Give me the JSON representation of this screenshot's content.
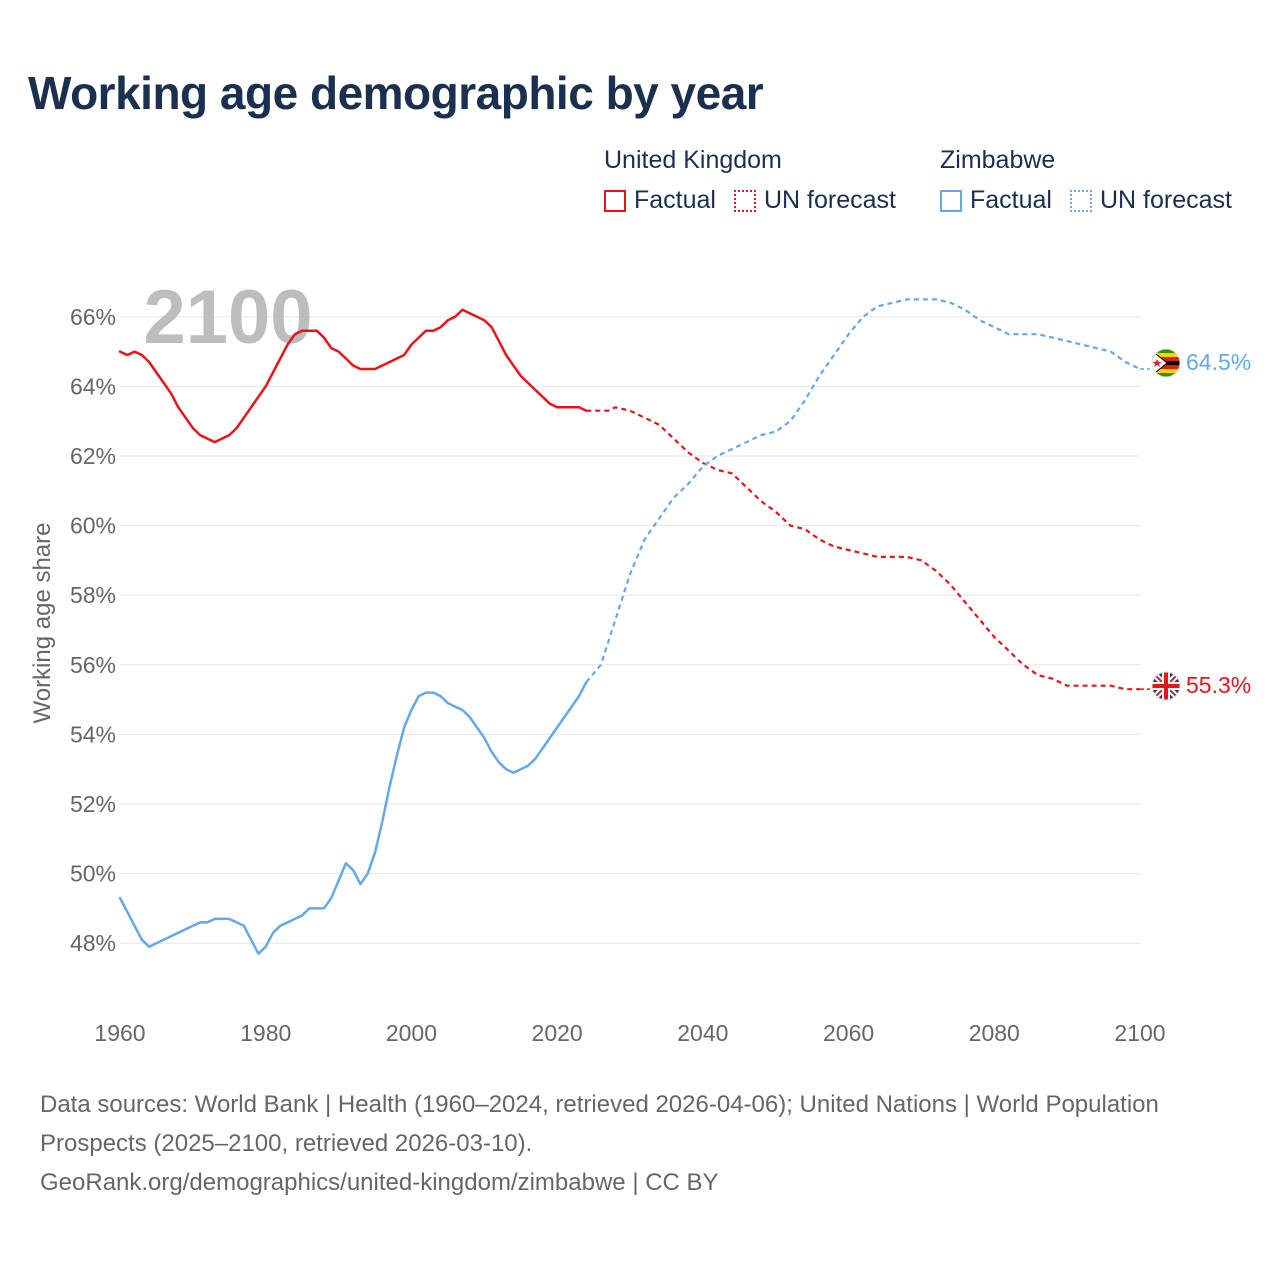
{
  "title": "Working age demographic by year",
  "legend": {
    "groups": [
      {
        "name": "United Kingdom",
        "color": "#e8141a",
        "factual_label": "Factual",
        "forecast_label": "UN forecast"
      },
      {
        "name": "Zimbabwe",
        "color": "#64a8e8",
        "factual_label": "Factual",
        "forecast_label": "UN forecast"
      }
    ]
  },
  "footer": {
    "sources": "Data sources: World Bank | Health (1960–2024, retrieved 2026-04-06); United Nations | World Population Prospects (2025–2100, retrieved 2026-03-10).",
    "link": "GeoRank.org/demographics/united-kingdom/zimbabwe | CC BY"
  },
  "chart_data": {
    "type": "line",
    "year_watermark": "2100",
    "ylabel": "Working age share",
    "xlim": [
      1960,
      2100
    ],
    "ylim": [
      46.8,
      67.2
    ],
    "xticks": [
      "1960",
      "1980",
      "2000",
      "2020",
      "2040",
      "2060",
      "2080",
      "2100"
    ],
    "yticks": [
      "48%",
      "50%",
      "52%",
      "54%",
      "56%",
      "58%",
      "60%",
      "62%",
      "64%",
      "66%"
    ],
    "forecast_start": 2024,
    "series": [
      {
        "name": "United Kingdom",
        "color": "#e8141a",
        "end_label": "55.3%",
        "end_icon": "uk-flag-icon",
        "points": [
          [
            1960,
            65.0
          ],
          [
            1961,
            64.9
          ],
          [
            1962,
            65.0
          ],
          [
            1963,
            64.9
          ],
          [
            1964,
            64.7
          ],
          [
            1965,
            64.4
          ],
          [
            1966,
            64.1
          ],
          [
            1967,
            63.8
          ],
          [
            1968,
            63.4
          ],
          [
            1969,
            63.1
          ],
          [
            1970,
            62.8
          ],
          [
            1971,
            62.6
          ],
          [
            1972,
            62.5
          ],
          [
            1973,
            62.4
          ],
          [
            1974,
            62.5
          ],
          [
            1975,
            62.6
          ],
          [
            1976,
            62.8
          ],
          [
            1977,
            63.1
          ],
          [
            1978,
            63.4
          ],
          [
            1979,
            63.7
          ],
          [
            1980,
            64.0
          ],
          [
            1981,
            64.4
          ],
          [
            1982,
            64.8
          ],
          [
            1983,
            65.2
          ],
          [
            1984,
            65.5
          ],
          [
            1985,
            65.6
          ],
          [
            1986,
            65.6
          ],
          [
            1987,
            65.6
          ],
          [
            1988,
            65.4
          ],
          [
            1989,
            65.1
          ],
          [
            1990,
            65.0
          ],
          [
            1991,
            64.8
          ],
          [
            1992,
            64.6
          ],
          [
            1993,
            64.5
          ],
          [
            1994,
            64.5
          ],
          [
            1995,
            64.5
          ],
          [
            1996,
            64.6
          ],
          [
            1997,
            64.7
          ],
          [
            1998,
            64.8
          ],
          [
            1999,
            64.9
          ],
          [
            2000,
            65.2
          ],
          [
            2001,
            65.4
          ],
          [
            2002,
            65.6
          ],
          [
            2003,
            65.6
          ],
          [
            2004,
            65.7
          ],
          [
            2005,
            65.9
          ],
          [
            2006,
            66.0
          ],
          [
            2007,
            66.2
          ],
          [
            2008,
            66.1
          ],
          [
            2009,
            66.0
          ],
          [
            2010,
            65.9
          ],
          [
            2011,
            65.7
          ],
          [
            2012,
            65.3
          ],
          [
            2013,
            64.9
          ],
          [
            2014,
            64.6
          ],
          [
            2015,
            64.3
          ],
          [
            2016,
            64.1
          ],
          [
            2017,
            63.9
          ],
          [
            2018,
            63.7
          ],
          [
            2019,
            63.5
          ],
          [
            2020,
            63.4
          ],
          [
            2021,
            63.4
          ],
          [
            2022,
            63.4
          ],
          [
            2023,
            63.4
          ],
          [
            2024,
            63.3
          ],
          [
            2026,
            63.3
          ],
          [
            2027,
            63.3
          ],
          [
            2028,
            63.4
          ],
          [
            2030,
            63.3
          ],
          [
            2032,
            63.1
          ],
          [
            2034,
            62.9
          ],
          [
            2036,
            62.5
          ],
          [
            2038,
            62.1
          ],
          [
            2040,
            61.8
          ],
          [
            2042,
            61.6
          ],
          [
            2044,
            61.5
          ],
          [
            2046,
            61.1
          ],
          [
            2048,
            60.7
          ],
          [
            2050,
            60.4
          ],
          [
            2052,
            60.0
          ],
          [
            2054,
            59.9
          ],
          [
            2056,
            59.6
          ],
          [
            2058,
            59.4
          ],
          [
            2060,
            59.3
          ],
          [
            2062,
            59.2
          ],
          [
            2064,
            59.1
          ],
          [
            2066,
            59.1
          ],
          [
            2068,
            59.1
          ],
          [
            2070,
            59.0
          ],
          [
            2072,
            58.7
          ],
          [
            2074,
            58.3
          ],
          [
            2076,
            57.8
          ],
          [
            2078,
            57.3
          ],
          [
            2080,
            56.8
          ],
          [
            2082,
            56.4
          ],
          [
            2084,
            56.0
          ],
          [
            2086,
            55.7
          ],
          [
            2088,
            55.6
          ],
          [
            2090,
            55.4
          ],
          [
            2092,
            55.4
          ],
          [
            2094,
            55.4
          ],
          [
            2096,
            55.4
          ],
          [
            2098,
            55.3
          ],
          [
            2100,
            55.3
          ]
        ]
      },
      {
        "name": "Zimbabwe",
        "color": "#64a8e8",
        "end_label": "64.5%",
        "end_icon": "zimbabwe-flag-icon",
        "points": [
          [
            1960,
            49.3
          ],
          [
            1961,
            48.9
          ],
          [
            1962,
            48.5
          ],
          [
            1963,
            48.1
          ],
          [
            1964,
            47.9
          ],
          [
            1965,
            48.0
          ],
          [
            1966,
            48.1
          ],
          [
            1967,
            48.2
          ],
          [
            1968,
            48.3
          ],
          [
            1969,
            48.4
          ],
          [
            1970,
            48.5
          ],
          [
            1971,
            48.6
          ],
          [
            1972,
            48.6
          ],
          [
            1973,
            48.7
          ],
          [
            1974,
            48.7
          ],
          [
            1975,
            48.7
          ],
          [
            1976,
            48.6
          ],
          [
            1977,
            48.5
          ],
          [
            1978,
            48.1
          ],
          [
            1979,
            47.7
          ],
          [
            1980,
            47.9
          ],
          [
            1981,
            48.3
          ],
          [
            1982,
            48.5
          ],
          [
            1983,
            48.6
          ],
          [
            1984,
            48.7
          ],
          [
            1985,
            48.8
          ],
          [
            1986,
            49.0
          ],
          [
            1987,
            49.0
          ],
          [
            1988,
            49.0
          ],
          [
            1989,
            49.3
          ],
          [
            1990,
            49.8
          ],
          [
            1991,
            50.3
          ],
          [
            1992,
            50.1
          ],
          [
            1993,
            49.7
          ],
          [
            1994,
            50.0
          ],
          [
            1995,
            50.6
          ],
          [
            1996,
            51.5
          ],
          [
            1997,
            52.5
          ],
          [
            1998,
            53.4
          ],
          [
            1999,
            54.2
          ],
          [
            2000,
            54.7
          ],
          [
            2001,
            55.1
          ],
          [
            2002,
            55.2
          ],
          [
            2003,
            55.2
          ],
          [
            2004,
            55.1
          ],
          [
            2005,
            54.9
          ],
          [
            2006,
            54.8
          ],
          [
            2007,
            54.7
          ],
          [
            2008,
            54.5
          ],
          [
            2009,
            54.2
          ],
          [
            2010,
            53.9
          ],
          [
            2011,
            53.5
          ],
          [
            2012,
            53.2
          ],
          [
            2013,
            53.0
          ],
          [
            2014,
            52.9
          ],
          [
            2015,
            53.0
          ],
          [
            2016,
            53.1
          ],
          [
            2017,
            53.3
          ],
          [
            2018,
            53.6
          ],
          [
            2019,
            53.9
          ],
          [
            2020,
            54.2
          ],
          [
            2021,
            54.5
          ],
          [
            2022,
            54.8
          ],
          [
            2023,
            55.1
          ],
          [
            2024,
            55.5
          ],
          [
            2026,
            56.0
          ],
          [
            2028,
            57.3
          ],
          [
            2030,
            58.6
          ],
          [
            2032,
            59.6
          ],
          [
            2034,
            60.2
          ],
          [
            2036,
            60.8
          ],
          [
            2038,
            61.2
          ],
          [
            2040,
            61.7
          ],
          [
            2042,
            62.0
          ],
          [
            2044,
            62.2
          ],
          [
            2046,
            62.4
          ],
          [
            2048,
            62.6
          ],
          [
            2050,
            62.7
          ],
          [
            2052,
            63.0
          ],
          [
            2054,
            63.6
          ],
          [
            2056,
            64.3
          ],
          [
            2058,
            64.9
          ],
          [
            2060,
            65.5
          ],
          [
            2062,
            66.0
          ],
          [
            2064,
            66.3
          ],
          [
            2066,
            66.4
          ],
          [
            2068,
            66.5
          ],
          [
            2070,
            66.5
          ],
          [
            2072,
            66.5
          ],
          [
            2074,
            66.4
          ],
          [
            2076,
            66.2
          ],
          [
            2078,
            65.9
          ],
          [
            2080,
            65.7
          ],
          [
            2082,
            65.5
          ],
          [
            2084,
            65.5
          ],
          [
            2086,
            65.5
          ],
          [
            2088,
            65.4
          ],
          [
            2090,
            65.3
          ],
          [
            2092,
            65.2
          ],
          [
            2094,
            65.1
          ],
          [
            2096,
            65.0
          ],
          [
            2098,
            64.7
          ],
          [
            2100,
            64.5
          ]
        ]
      }
    ]
  }
}
